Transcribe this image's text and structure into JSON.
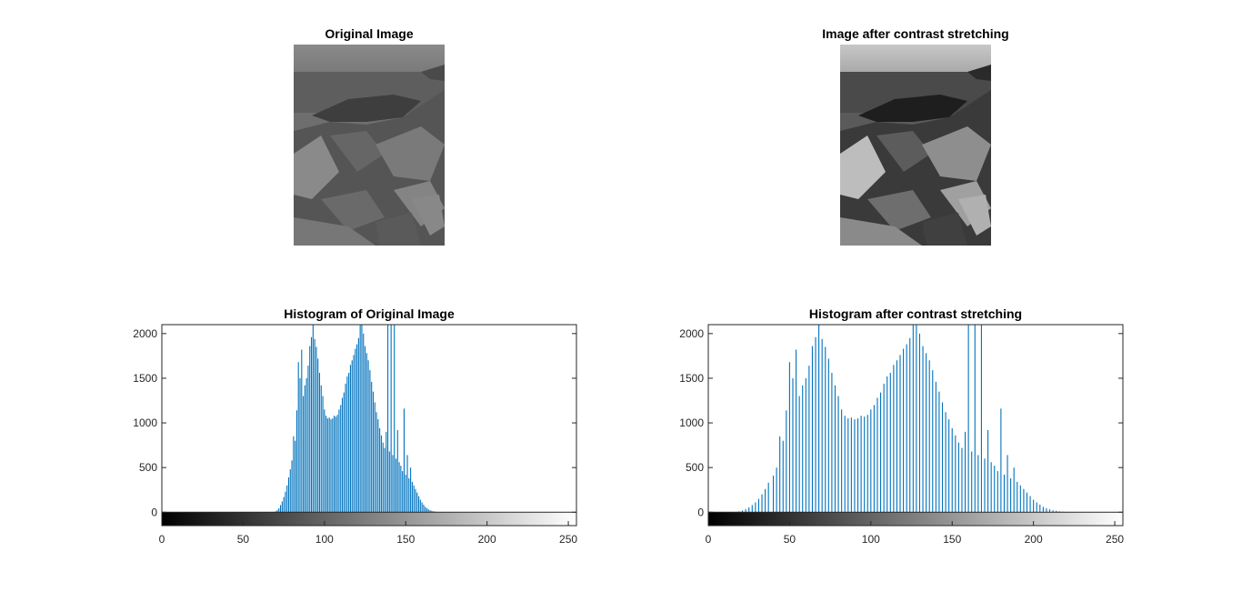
{
  "images": [
    {
      "title": "Original Image",
      "contrast": "low"
    },
    {
      "title": "Image after contrast stretching",
      "contrast": "high"
    }
  ],
  "chart_data": [
    {
      "type": "bar",
      "title": "Histogram of Original Image",
      "xlabel": "",
      "ylabel": "",
      "xlim": [
        0,
        255
      ],
      "ylim": [
        -150,
        2100
      ],
      "xticks": [
        "0",
        "50",
        "100",
        "150",
        "200",
        "250"
      ],
      "yticks": [
        "0",
        "500",
        "1000",
        "1500",
        "2000"
      ],
      "colorbar": "grayscale 0-255",
      "x": [
        70,
        71,
        72,
        73,
        74,
        75,
        76,
        77,
        78,
        79,
        80,
        81,
        82,
        83,
        84,
        85,
        86,
        87,
        88,
        89,
        90,
        91,
        92,
        93,
        94,
        95,
        96,
        97,
        98,
        99,
        100,
        101,
        102,
        103,
        104,
        105,
        106,
        107,
        108,
        109,
        110,
        111,
        112,
        113,
        114,
        115,
        116,
        117,
        118,
        119,
        120,
        121,
        122,
        123,
        124,
        125,
        126,
        127,
        128,
        129,
        130,
        131,
        132,
        133,
        134,
        135,
        136,
        137,
        138,
        139,
        140,
        141,
        142,
        143,
        144,
        145,
        146,
        147,
        148,
        149,
        150,
        151,
        152,
        153,
        154,
        155,
        156,
        157,
        158,
        159,
        160,
        161,
        162,
        163,
        164,
        165,
        166,
        167,
        168,
        169,
        170,
        171
      ],
      "values": [
        10,
        25,
        45,
        80,
        120,
        170,
        230,
        300,
        390,
        480,
        580,
        850,
        800,
        1140,
        1680,
        1500,
        1820,
        1300,
        1420,
        1500,
        1640,
        1860,
        1960,
        2100,
        1940,
        1850,
        1720,
        1560,
        1420,
        1300,
        1150,
        1080,
        1050,
        1060,
        1040,
        1050,
        1080,
        1070,
        1090,
        1150,
        1200,
        1280,
        1340,
        1440,
        1520,
        1560,
        1650,
        1700,
        1760,
        1830,
        1880,
        1950,
        2100,
        2100,
        2000,
        1860,
        1780,
        1700,
        1590,
        1460,
        1350,
        1230,
        1120,
        1040,
        940,
        860,
        780,
        720,
        900,
        2100,
        680,
        2100,
        640,
        2100,
        600,
        920,
        560,
        520,
        460,
        1160,
        420,
        640,
        380,
        500,
        340,
        300,
        260,
        220,
        180,
        140,
        110,
        85,
        60,
        45,
        32,
        22,
        16,
        10,
        7,
        4,
        2,
        1
      ]
    },
    {
      "type": "bar",
      "title": "Histogram after contrast stretching",
      "xlabel": "",
      "ylabel": "",
      "xlim": [
        0,
        255
      ],
      "ylim": [
        -150,
        2100
      ],
      "xticks": [
        "0",
        "50",
        "100",
        "150",
        "200",
        "250"
      ],
      "yticks": [
        "0",
        "500",
        "1000",
        "1500",
        "2000"
      ],
      "colorbar": "grayscale 0-255",
      "x": [
        19,
        21,
        23,
        25,
        27,
        29,
        31,
        33,
        35,
        37,
        40,
        42,
        44,
        46,
        48,
        50,
        52,
        54,
        56,
        58,
        60,
        62,
        64,
        66,
        68,
        70,
        72,
        74,
        76,
        78,
        80,
        82,
        84,
        86,
        88,
        90,
        92,
        94,
        96,
        98,
        100,
        102,
        104,
        106,
        108,
        110,
        112,
        114,
        116,
        118,
        120,
        122,
        124,
        126,
        128,
        130,
        132,
        134,
        136,
        138,
        140,
        142,
        144,
        146,
        148,
        150,
        152,
        154,
        156,
        158,
        160,
        162,
        164,
        166,
        168,
        170,
        172,
        174,
        176,
        178,
        180,
        182,
        184,
        186,
        188,
        190,
        192,
        194,
        196,
        198,
        200,
        202,
        204,
        206,
        208,
        210,
        212,
        214,
        216,
        218,
        220,
        222,
        224,
        226,
        228,
        230,
        232,
        234,
        236,
        238,
        240
      ],
      "values": [
        10,
        20,
        35,
        55,
        80,
        110,
        150,
        200,
        260,
        330,
        410,
        500,
        850,
        800,
        1140,
        1680,
        1500,
        1820,
        1300,
        1420,
        1500,
        1640,
        1860,
        1960,
        2100,
        1940,
        1850,
        1720,
        1560,
        1420,
        1300,
        1150,
        1080,
        1050,
        1060,
        1040,
        1050,
        1080,
        1070,
        1090,
        1150,
        1200,
        1280,
        1340,
        1440,
        1520,
        1560,
        1650,
        1700,
        1760,
        1830,
        1880,
        1950,
        2100,
        2100,
        2000,
        1860,
        1780,
        1700,
        1590,
        1460,
        1350,
        1230,
        1120,
        1040,
        940,
        860,
        780,
        720,
        900,
        2100,
        680,
        2100,
        640,
        2100,
        600,
        920,
        560,
        520,
        460,
        1160,
        420,
        640,
        380,
        500,
        340,
        300,
        260,
        220,
        180,
        140,
        110,
        85,
        60,
        45,
        32,
        22,
        16,
        10,
        7,
        4,
        2,
        1,
        1,
        1,
        1,
        1,
        1,
        1,
        1,
        1
      ]
    }
  ]
}
